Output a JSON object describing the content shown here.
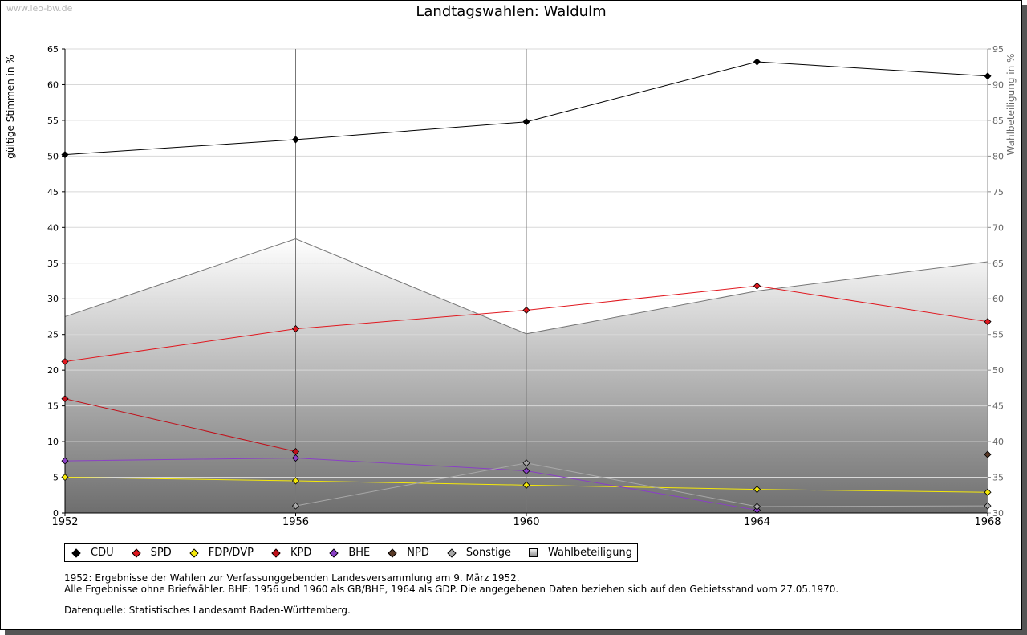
{
  "watermark": "www.leo-bw.de",
  "chart_data": {
    "type": "line",
    "title": "Landtagswahlen: Waldulm",
    "ylabel": "gültige Stimmen in %",
    "y2label": "Wahlbeteiligung in %",
    "x": [
      1952,
      1956,
      1960,
      1964,
      1968
    ],
    "xlim": [
      1952,
      1968
    ],
    "ylim": [
      0,
      65
    ],
    "y_ticks": [
      0,
      5,
      10,
      15,
      20,
      25,
      30,
      35,
      40,
      45,
      50,
      55,
      60,
      65
    ],
    "y2lim": [
      30,
      95
    ],
    "y2_ticks": [
      30,
      35,
      40,
      45,
      50,
      55,
      60,
      65,
      70,
      75,
      80,
      85,
      90,
      95
    ],
    "grid": true,
    "legend_position": "bottom",
    "series": [
      {
        "name": "CDU",
        "color": "#000000",
        "values": [
          50.2,
          52.3,
          54.8,
          63.2,
          61.2
        ]
      },
      {
        "name": "SPD",
        "color": "#e0181f",
        "values": [
          21.2,
          25.8,
          28.4,
          31.8,
          26.8
        ]
      },
      {
        "name": "FDP/DVP",
        "color": "#f5e90a",
        "values": [
          5.0,
          4.5,
          3.9,
          3.3,
          2.9
        ]
      },
      {
        "name": "KPD",
        "color": "#c0101a",
        "values": [
          16.0,
          8.6,
          null,
          null,
          null
        ]
      },
      {
        "name": "BHE",
        "color": "#8a3fc6",
        "values": [
          7.3,
          7.7,
          5.9,
          0.4,
          null
        ]
      },
      {
        "name": "NPD",
        "color": "#5a3a28",
        "values": [
          null,
          null,
          null,
          null,
          8.2
        ]
      },
      {
        "name": "Sonstige",
        "color": "#a8a8a8",
        "values": [
          null,
          1.0,
          7.0,
          0.9,
          1.0
        ]
      }
    ],
    "turnout": {
      "name": "Wahlbeteiligung",
      "axis": "right",
      "type": "area",
      "values": [
        57.5,
        68.4,
        55.1,
        61.1,
        65.2
      ]
    },
    "legend": [
      "CDU",
      "SPD",
      "FDP/DVP",
      "KPD",
      "BHE",
      "NPD",
      "Sonstige",
      "Wahlbeteiligung"
    ]
  },
  "notes": {
    "line1": "1952: Ergebnisse der Wahlen zur Verfassunggebenden Landesversammlung am 9. März 1952.",
    "line2": "Alle Ergebnisse ohne Briefwähler. BHE: 1956 und 1960 als GB/BHE, 1964 als GDP. Die angegebenen Daten beziehen sich auf den Gebietsstand vom 27.05.1970.",
    "source": "Datenquelle: Statistisches Landesamt Baden-Württemberg."
  }
}
